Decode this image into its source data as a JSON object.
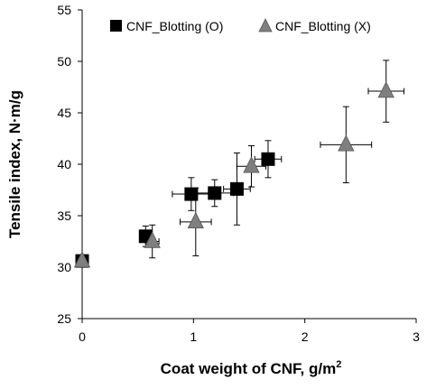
{
  "chart_data": {
    "type": "scatter",
    "xlabel": "Coat weight of CNF, g/m",
    "xlabel_sup": "2",
    "ylabel": "Tensile index, N·m/g",
    "xlim": [
      0,
      3
    ],
    "ylim": [
      25,
      55
    ],
    "x_ticks": [
      "0",
      "1",
      "2",
      "3"
    ],
    "y_ticks": [
      "25",
      "30",
      "35",
      "40",
      "45",
      "50",
      "55"
    ],
    "grid": false,
    "legend_position": "top",
    "series": [
      {
        "name": "CNF_Blotting (O)",
        "marker": "square",
        "color": "#000000",
        "points": [
          {
            "x": 0.0,
            "y": 30.6,
            "xerr": 0.0,
            "yerr": 0.0
          },
          {
            "x": 0.57,
            "y": 33.0,
            "xerr": 0.03,
            "yerr": 1.0
          },
          {
            "x": 0.98,
            "y": 37.1,
            "xerr": 0.17,
            "yerr": 1.6
          },
          {
            "x": 1.19,
            "y": 37.2,
            "xerr": 0.17,
            "yerr": 1.3
          },
          {
            "x": 1.39,
            "y": 37.6,
            "xerr": 0.12,
            "yerr": 3.5
          },
          {
            "x": 1.67,
            "y": 40.5,
            "xerr": 0.12,
            "yerr": 1.8
          }
        ]
      },
      {
        "name": "CNF_Blotting (X)",
        "marker": "triangle",
        "color": "#7f7f7f",
        "points": [
          {
            "x": 0.0,
            "y": 30.6,
            "xerr": 0.0,
            "yerr": 0.0
          },
          {
            "x": 0.63,
            "y": 32.5,
            "xerr": 0.06,
            "yerr": 1.6
          },
          {
            "x": 1.02,
            "y": 34.4,
            "xerr": 0.14,
            "yerr": 3.3
          },
          {
            "x": 1.52,
            "y": 39.8,
            "xerr": 0.13,
            "yerr": 2.0
          },
          {
            "x": 2.37,
            "y": 41.9,
            "xerr": 0.23,
            "yerr": 3.7
          },
          {
            "x": 2.73,
            "y": 47.1,
            "xerr": 0.16,
            "yerr": 3.0
          }
        ]
      }
    ]
  }
}
